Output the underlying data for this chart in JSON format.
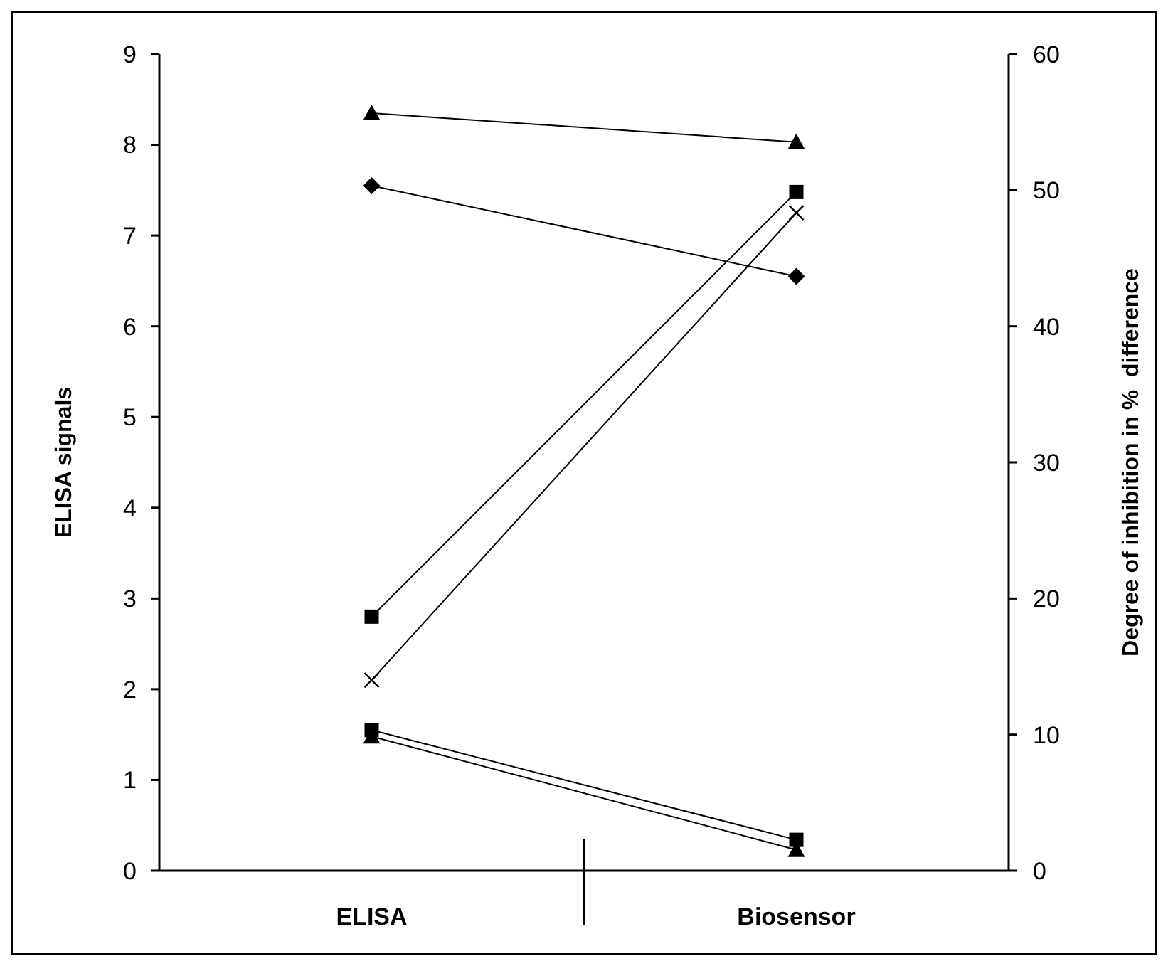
{
  "chart_data": {
    "type": "line",
    "categories": [
      "ELISA",
      "Biosensor"
    ],
    "ylabel": "ELISA signals",
    "y2label": "Degree of inhibition in %  difference",
    "ylim": [
      0,
      9
    ],
    "yticks": [
      0,
      1,
      2,
      3,
      4,
      5,
      6,
      7,
      8,
      9
    ],
    "y2lim": [
      0,
      60
    ],
    "y2ticks": [
      0,
      10,
      20,
      30,
      40,
      50,
      60
    ],
    "grid": false,
    "line_style": "solid",
    "series": [
      {
        "color": "#000000",
        "marker": "triangle",
        "values": [
          8.35,
          8.03
        ]
      },
      {
        "color": "#000000",
        "marker": "diamond",
        "values": [
          7.55,
          6.55
        ]
      },
      {
        "color": "#000000",
        "marker": "square",
        "values": [
          2.8,
          7.48
        ]
      },
      {
        "color": "#000000",
        "marker": "cross",
        "values": [
          2.1,
          7.25
        ]
      },
      {
        "color": "#000000",
        "marker": "square",
        "values": [
          1.55,
          0.34
        ]
      },
      {
        "color": "#000000",
        "marker": "triangle",
        "values": [
          1.48,
          0.23
        ]
      }
    ]
  }
}
